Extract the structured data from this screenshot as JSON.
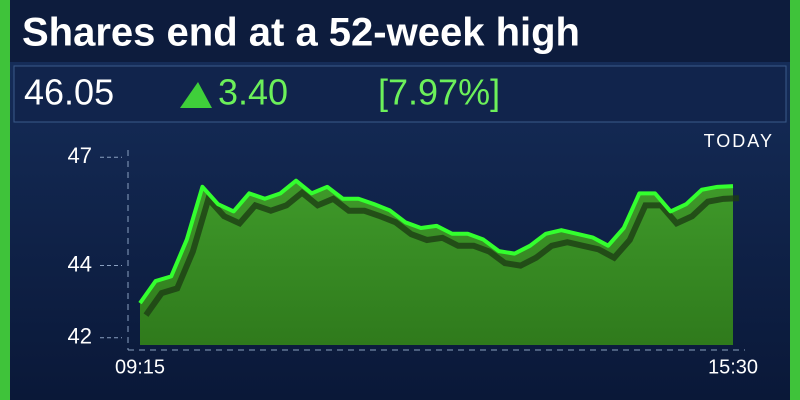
{
  "chart_data": {
    "type": "area",
    "title": "Shares end at a 52-week high",
    "price": "46.05",
    "change": "3.40",
    "change_percent": "[7.97%]",
    "period": "TODAY",
    "categories": [
      "09:15",
      null,
      null,
      null,
      null,
      null,
      null,
      null,
      null,
      null,
      null,
      null,
      null,
      null,
      null,
      null,
      null,
      null,
      null,
      null,
      null,
      null,
      null,
      null,
      null,
      null,
      null,
      null,
      null,
      null,
      null,
      null,
      null,
      null,
      null,
      null,
      null,
      null,
      "15:30"
    ],
    "series": [
      {
        "color": "#33ff2e",
        "values": [
          42.96,
          43.57,
          43.7,
          44.72,
          46.18,
          45.7,
          45.5,
          46.0,
          45.85,
          46.0,
          46.35,
          46.0,
          46.18,
          45.85,
          45.85,
          45.7,
          45.53,
          45.2,
          45.04,
          45.1,
          44.88,
          44.88,
          44.72,
          44.4,
          44.33,
          44.55,
          44.88,
          44.98,
          44.88,
          44.78,
          44.55,
          45.04,
          46.0,
          46.0,
          45.5,
          45.7,
          46.1,
          46.18,
          46.2
        ]
      }
    ],
    "ylim": [
      41.8,
      47.2
    ],
    "yticks": [
      42,
      44,
      47
    ]
  }
}
